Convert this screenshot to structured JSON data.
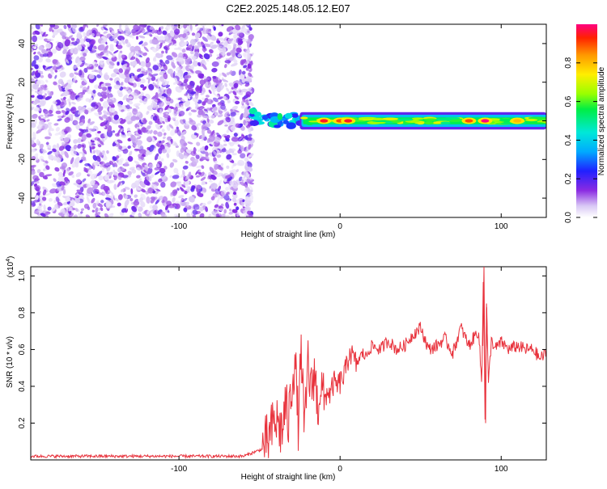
{
  "page_title": "C2E2.2025.148.05.12.E07",
  "chart_data": [
    {
      "type": "heatmap",
      "title": "C2E2.2025.148.05.12.E07",
      "xlabel": "Height of straight line (km)",
      "ylabel": "Frequency (Hz)",
      "xlim": [
        -192,
        128
      ],
      "ylim": [
        -50,
        50
      ],
      "x_ticks": [
        -100,
        0,
        100
      ],
      "x_tick_labels": [
        "-100",
        "0",
        "100"
      ],
      "y_ticks": [
        -40,
        -20,
        0,
        20,
        40
      ],
      "y_tick_labels": [
        "-40",
        "-20",
        "0",
        "20",
        "40"
      ],
      "noise_region_x": [
        -192,
        -55
      ],
      "signal_band": {
        "x_start": -55,
        "x_end": 128,
        "center_hz": 0,
        "halfwidth_hz": 3,
        "peaks": [
          {
            "x": -10,
            "amplitude": 0.95
          },
          {
            "x": 0,
            "amplitude": 0.9
          },
          {
            "x": 5,
            "amplitude": 0.95
          },
          {
            "x": 80,
            "amplitude": 0.9
          },
          {
            "x": 90,
            "amplitude": 1.0
          },
          {
            "x": 110,
            "amplitude": 0.8
          }
        ]
      },
      "colorbar": {
        "label": "Normalized spectral amplitude",
        "range": [
          0,
          1
        ],
        "ticks": [
          0.0,
          0.2,
          0.4,
          0.6,
          0.8
        ],
        "tick_labels": [
          "0.0",
          "0.2",
          "0.4",
          "0.6",
          "0.8"
        ]
      },
      "grid": false
    },
    {
      "type": "line",
      "xlabel": "Height of straight line (km)",
      "ylabel": "SNR (10 * v/v)",
      "yscale_label": "(x10",
      "yscale_exponent": "4",
      "yscale_close": ")",
      "xlim": [
        -192,
        128
      ],
      "ylim": [
        0,
        1.05
      ],
      "x_ticks": [
        -100,
        0,
        100
      ],
      "x_tick_labels": [
        "-100",
        "0",
        "100"
      ],
      "y_ticks": [
        0.2,
        0.4,
        0.6,
        0.8,
        1.0
      ],
      "y_tick_labels": [
        "0.2",
        "0.4",
        "0.6",
        "0.8",
        "1.0"
      ],
      "series": [
        {
          "color": "#e8323c",
          "x": [
            -192,
            -150,
            -100,
            -60,
            -48,
            -44,
            -40,
            -36,
            -34,
            -32,
            -30,
            -28,
            -26,
            -24,
            -22,
            -20,
            -18,
            -16,
            -14,
            -12,
            -10,
            -8,
            -6,
            -4,
            -2,
            0,
            2,
            4,
            6,
            8,
            10,
            12,
            14,
            16,
            18,
            20,
            25,
            30,
            35,
            40,
            45,
            50,
            55,
            60,
            65,
            70,
            75,
            80,
            84,
            86,
            88,
            89,
            90,
            91,
            92,
            94,
            96,
            100,
            105,
            110,
            115,
            120,
            124,
            128
          ],
          "y": [
            0.02,
            0.02,
            0.02,
            0.02,
            0.06,
            0.12,
            0.22,
            0.15,
            0.3,
            0.2,
            0.42,
            0.55,
            0.2,
            0.6,
            0.1,
            0.55,
            0.35,
            0.5,
            0.28,
            0.42,
            0.3,
            0.38,
            0.35,
            0.42,
            0.4,
            0.42,
            0.45,
            0.5,
            0.6,
            0.55,
            0.52,
            0.55,
            0.58,
            0.56,
            0.6,
            0.62,
            0.6,
            0.65,
            0.6,
            0.62,
            0.68,
            0.72,
            0.6,
            0.62,
            0.66,
            0.58,
            0.72,
            0.62,
            0.68,
            0.7,
            0.4,
            1.05,
            0.2,
            0.85,
            0.4,
            0.66,
            0.6,
            0.64,
            0.6,
            0.62,
            0.6,
            0.6,
            0.55,
            0.58
          ]
        }
      ],
      "grid": false
    }
  ]
}
